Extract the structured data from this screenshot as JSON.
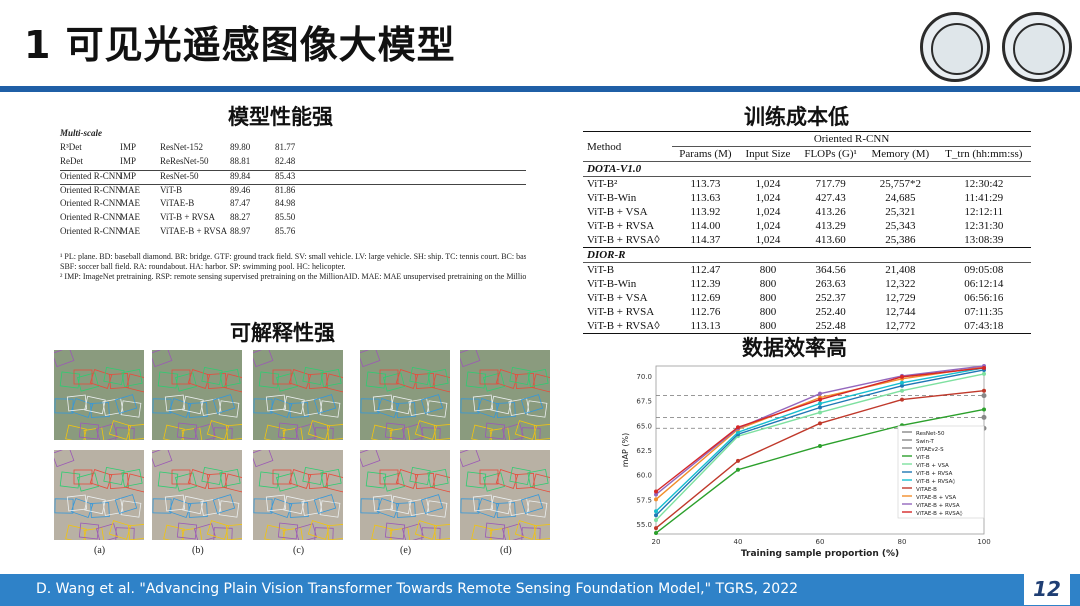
{
  "header": {
    "title": "1 可见光遥感图像大模型"
  },
  "sections": {
    "performance": "模型性能强",
    "cost": "训练成本低",
    "interpret": "可解释性强",
    "efficiency": "数据效率高"
  },
  "perf_table": {
    "caption_lines": [
      "¹ PL: plane. BD: baseball diamond. BR: bridge. GTF: ground track field. SV: small vehicle. LV: large vehicle. SH: ship. TC: tennis court. BC: basketball court. ST: storage tank.",
      "SBF: soccer ball field. RA: roundabout. HA: harbor. SP: swimming pool. HC: helicopter.",
      "² IMP: ImageNet pretraining. RSP: remote sensing supervised pretraining on the MillionAID. MAE: MAE unsupervised pretraining on the MillionAID."
    ],
    "rows": [
      [
        "Multi-scale",
        "",
        "",
        "",
        ""
      ],
      [
        "R³Det",
        "IMP",
        "ResNet-152",
        "89.80",
        "81.77"
      ],
      [
        "ReDet",
        "IMP",
        "ReResNet-50",
        "88.81",
        "82.48"
      ],
      [
        "Oriented R-CNN",
        "IMP",
        "ResNet-50",
        "89.84",
        "85.43"
      ],
      [
        "Oriented R-CNN",
        "MAE",
        "ViT-B",
        "89.46",
        "81.86"
      ],
      [
        "Oriented R-CNN",
        "MAE",
        "ViTAE-B",
        "87.47",
        "84.98"
      ],
      [
        "Oriented R-CNN",
        "MAE",
        "ViT-B + RVSA",
        "88.27",
        "85.50"
      ],
      [
        "Oriented R-CNN",
        "MAE",
        "ViTAE-B + RVSA",
        "88.97",
        "85.76"
      ]
    ]
  },
  "cost_table": {
    "method_header": "Method",
    "group_header": "Oriented R-CNN",
    "columns": [
      "Params (M)",
      "Input Size",
      "FLOPs (G)¹",
      "Memory (M)",
      "T_trn (hh:mm:ss)"
    ],
    "sections": [
      {
        "name": "DOTA-V1.0",
        "rows": [
          [
            "ViT-B²",
            "113.73",
            "1,024",
            "717.79",
            "25,757*2",
            "12:30:42"
          ],
          [
            "ViT-B-Win",
            "113.63",
            "1,024",
            "427.43",
            "24,685",
            "11:41:29"
          ],
          [
            "ViT-B + VSA",
            "113.92",
            "1,024",
            "413.26",
            "25,321",
            "12:12:11"
          ],
          [
            "ViT-B + RVSA",
            "114.00",
            "1,024",
            "413.29",
            "25,343",
            "12:31:30"
          ],
          [
            "ViT-B + RVSA◊",
            "114.37",
            "1,024",
            "413.60",
            "25,386",
            "13:08:39"
          ]
        ]
      },
      {
        "name": "DIOR-R",
        "rows": [
          [
            "ViT-B",
            "112.47",
            "800",
            "364.56",
            "21,408",
            "09:05:08"
          ],
          [
            "ViT-B-Win",
            "112.39",
            "800",
            "263.63",
            "12,322",
            "06:12:14"
          ],
          [
            "ViT-B + VSA",
            "112.69",
            "800",
            "252.37",
            "12,729",
            "06:56:16"
          ],
          [
            "ViT-B + RVSA",
            "112.76",
            "800",
            "252.40",
            "12,744",
            "07:11:35"
          ],
          [
            "ViT-B + RVSA◊",
            "113.13",
            "800",
            "252.48",
            "12,772",
            "07:43:18"
          ]
        ]
      }
    ]
  },
  "interpret": {
    "captions": [
      "(a)",
      "(b)",
      "(c)",
      "(e)",
      "(d)"
    ]
  },
  "chart_data": {
    "type": "line",
    "xlabel": "Training sample proportion (%)",
    "ylabel": "mAP (%)",
    "x": [
      20,
      40,
      60,
      80,
      100
    ],
    "xlim": [
      20,
      100
    ],
    "ylim": [
      54,
      71
    ],
    "yticks": [
      55.0,
      57.5,
      60.0,
      62.5,
      65.0,
      67.5,
      70.0
    ],
    "xticks": [
      20,
      40,
      60,
      80,
      100
    ],
    "grid": false,
    "legend_position": "bottom-right",
    "reference_lines": [
      {
        "name": "ResNet-50",
        "value": 64.7,
        "color": "#888888",
        "marker": "diamond"
      },
      {
        "name": "Swin-T",
        "value": 65.8,
        "color": "#888888",
        "marker": "hexagon"
      },
      {
        "name": "ViTAEv2-S",
        "value": 68.0,
        "color": "#888888",
        "marker": "star"
      }
    ],
    "series": [
      {
        "name": "ViT-B",
        "color": "#2ca02c",
        "values": [
          54.1,
          60.5,
          62.9,
          65.0,
          66.6
        ]
      },
      {
        "name": "ViT-B + VSA",
        "color": "#7ee0a0",
        "values": [
          55.4,
          63.9,
          66.3,
          68.5,
          70.2
        ]
      },
      {
        "name": "ViT-B + RVSA",
        "color": "#1f77b4",
        "values": [
          55.9,
          64.1,
          66.8,
          69.0,
          70.6
        ]
      },
      {
        "name": "ViT-B + RVSA◊",
        "color": "#17becf",
        "values": [
          56.3,
          64.3,
          67.2,
          69.3,
          70.8
        ]
      },
      {
        "name": "ViTAE-B",
        "color": "#c0392b",
        "values": [
          54.6,
          61.4,
          65.2,
          67.6,
          68.5
        ]
      },
      {
        "name": "ViTAE-B + VSA",
        "color": "#f28e2b",
        "values": [
          57.5,
          64.6,
          67.8,
          69.7,
          70.9
        ]
      },
      {
        "name": "ViTAE-B + RVSA",
        "color": "#9467bd",
        "values": [
          58.0,
          64.7,
          68.2,
          70.0,
          71.0
        ]
      },
      {
        "name": "ViTAE-B + RVSA◊",
        "color": "#d62728",
        "values": [
          58.3,
          64.8,
          67.6,
          69.9,
          70.8
        ]
      }
    ]
  },
  "footer": {
    "citation": "D. Wang et al. \"Advancing Plain Vision Transformer Towards Remote Sensing Foundation Model,\" TGRS, 2022",
    "page": "12"
  }
}
